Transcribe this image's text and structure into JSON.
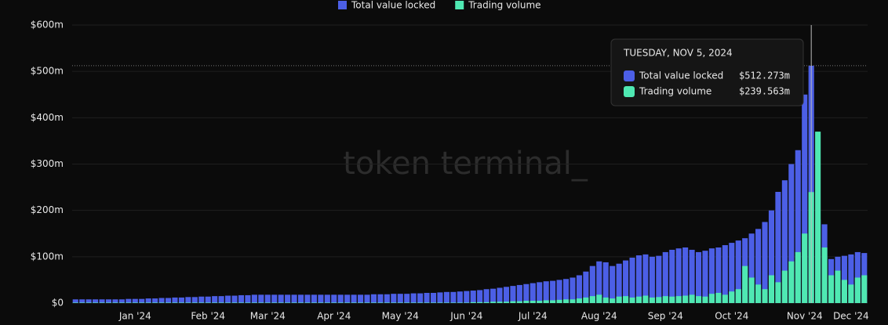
{
  "chart_data": {
    "type": "bar",
    "watermark": "token terminal_",
    "categories": [
      null,
      null,
      null,
      null,
      null,
      null,
      null,
      null,
      null,
      "Jan '24",
      null,
      null,
      null,
      null,
      null,
      null,
      null,
      null,
      null,
      null,
      "Feb '24",
      null,
      null,
      null,
      null,
      null,
      null,
      null,
      null,
      "Mar '24",
      null,
      null,
      null,
      null,
      null,
      null,
      null,
      null,
      null,
      "Apr '24",
      null,
      null,
      null,
      null,
      null,
      null,
      null,
      null,
      null,
      "May '24",
      null,
      null,
      null,
      null,
      null,
      null,
      null,
      null,
      null,
      "Jun '24",
      null,
      null,
      null,
      null,
      null,
      null,
      null,
      null,
      null,
      "Jul '24",
      null,
      null,
      null,
      null,
      null,
      null,
      null,
      null,
      null,
      "Aug '24",
      null,
      null,
      null,
      null,
      null,
      null,
      null,
      null,
      null,
      "Sep '24",
      null,
      null,
      null,
      null,
      null,
      null,
      null,
      null,
      null,
      "Oct '24",
      null,
      null,
      null,
      null,
      null,
      null,
      null,
      null,
      null,
      null,
      "Nov '24",
      null,
      null,
      null,
      null,
      null,
      null,
      "Dec '24",
      null,
      null
    ],
    "series": [
      {
        "name": "Total value locked",
        "color": "#4c5fe6",
        "values": [
          8,
          8,
          8,
          8,
          8,
          8,
          8,
          8,
          9,
          9,
          9,
          10,
          10,
          11,
          11,
          12,
          12,
          13,
          13,
          14,
          14,
          15,
          15,
          16,
          16,
          17,
          17,
          18,
          18,
          18,
          18,
          18,
          18,
          18,
          18,
          18,
          18,
          18,
          18,
          18,
          18,
          18,
          18,
          18,
          18,
          19,
          19,
          19,
          20,
          20,
          20,
          21,
          21,
          22,
          22,
          23,
          24,
          24,
          25,
          26,
          27,
          28,
          30,
          31,
          33,
          35,
          37,
          39,
          41,
          43,
          45,
          47,
          48,
          50,
          52,
          55,
          60,
          68,
          80,
          90,
          88,
          80,
          85,
          92,
          98,
          103,
          105,
          100,
          102,
          110,
          115,
          118,
          120,
          115,
          110,
          113,
          118,
          120,
          125,
          130,
          135,
          140,
          150,
          160,
          175,
          200,
          240,
          265,
          300,
          330,
          450,
          512.273,
          180,
          170,
          95,
          100,
          102,
          105,
          110,
          108
        ]
      },
      {
        "name": "Trading volume",
        "color": "#4fe8b2",
        "values": [
          1,
          1,
          1,
          1,
          1,
          1,
          1,
          1,
          1,
          1,
          1,
          1,
          1,
          1,
          1,
          1,
          1,
          1,
          1,
          1,
          1,
          1,
          1,
          1,
          1,
          1,
          1,
          1,
          1,
          1,
          1,
          1,
          1,
          1,
          1,
          1,
          1,
          1,
          1,
          1,
          1,
          1,
          1,
          1,
          1,
          1,
          1,
          1,
          1,
          1,
          1,
          1,
          1,
          1,
          1,
          1,
          1,
          1,
          1,
          1,
          2,
          2,
          2,
          3,
          3,
          3,
          4,
          4,
          5,
          5,
          5,
          6,
          6,
          7,
          8,
          8,
          10,
          12,
          15,
          18,
          12,
          10,
          14,
          15,
          12,
          14,
          16,
          12,
          13,
          15,
          14,
          15,
          16,
          18,
          15,
          14,
          20,
          22,
          18,
          25,
          30,
          80,
          55,
          40,
          30,
          60,
          45,
          70,
          90,
          110,
          150,
          239.563,
          370,
          120,
          60,
          70,
          50,
          40,
          55,
          60
        ]
      }
    ],
    "ylim": [
      0,
      600
    ],
    "yticks": [
      {
        "value": 0,
        "label": "$0"
      },
      {
        "value": 100,
        "label": "$100m"
      },
      {
        "value": 200,
        "label": "$200m"
      },
      {
        "value": 300,
        "label": "$300m"
      },
      {
        "value": 400,
        "label": "$400m"
      },
      {
        "value": 500,
        "label": "$500m"
      },
      {
        "value": 600,
        "label": "$600m"
      }
    ],
    "grid": true,
    "tooltip": {
      "title": "TUESDAY, NOV 5, 2024",
      "items": [
        {
          "name": "Total value locked",
          "value": 512.273,
          "value_label": "$512.273m"
        },
        {
          "name": "Trading volume",
          "value": 239.563,
          "value_label": "$239.563m"
        }
      ]
    }
  }
}
